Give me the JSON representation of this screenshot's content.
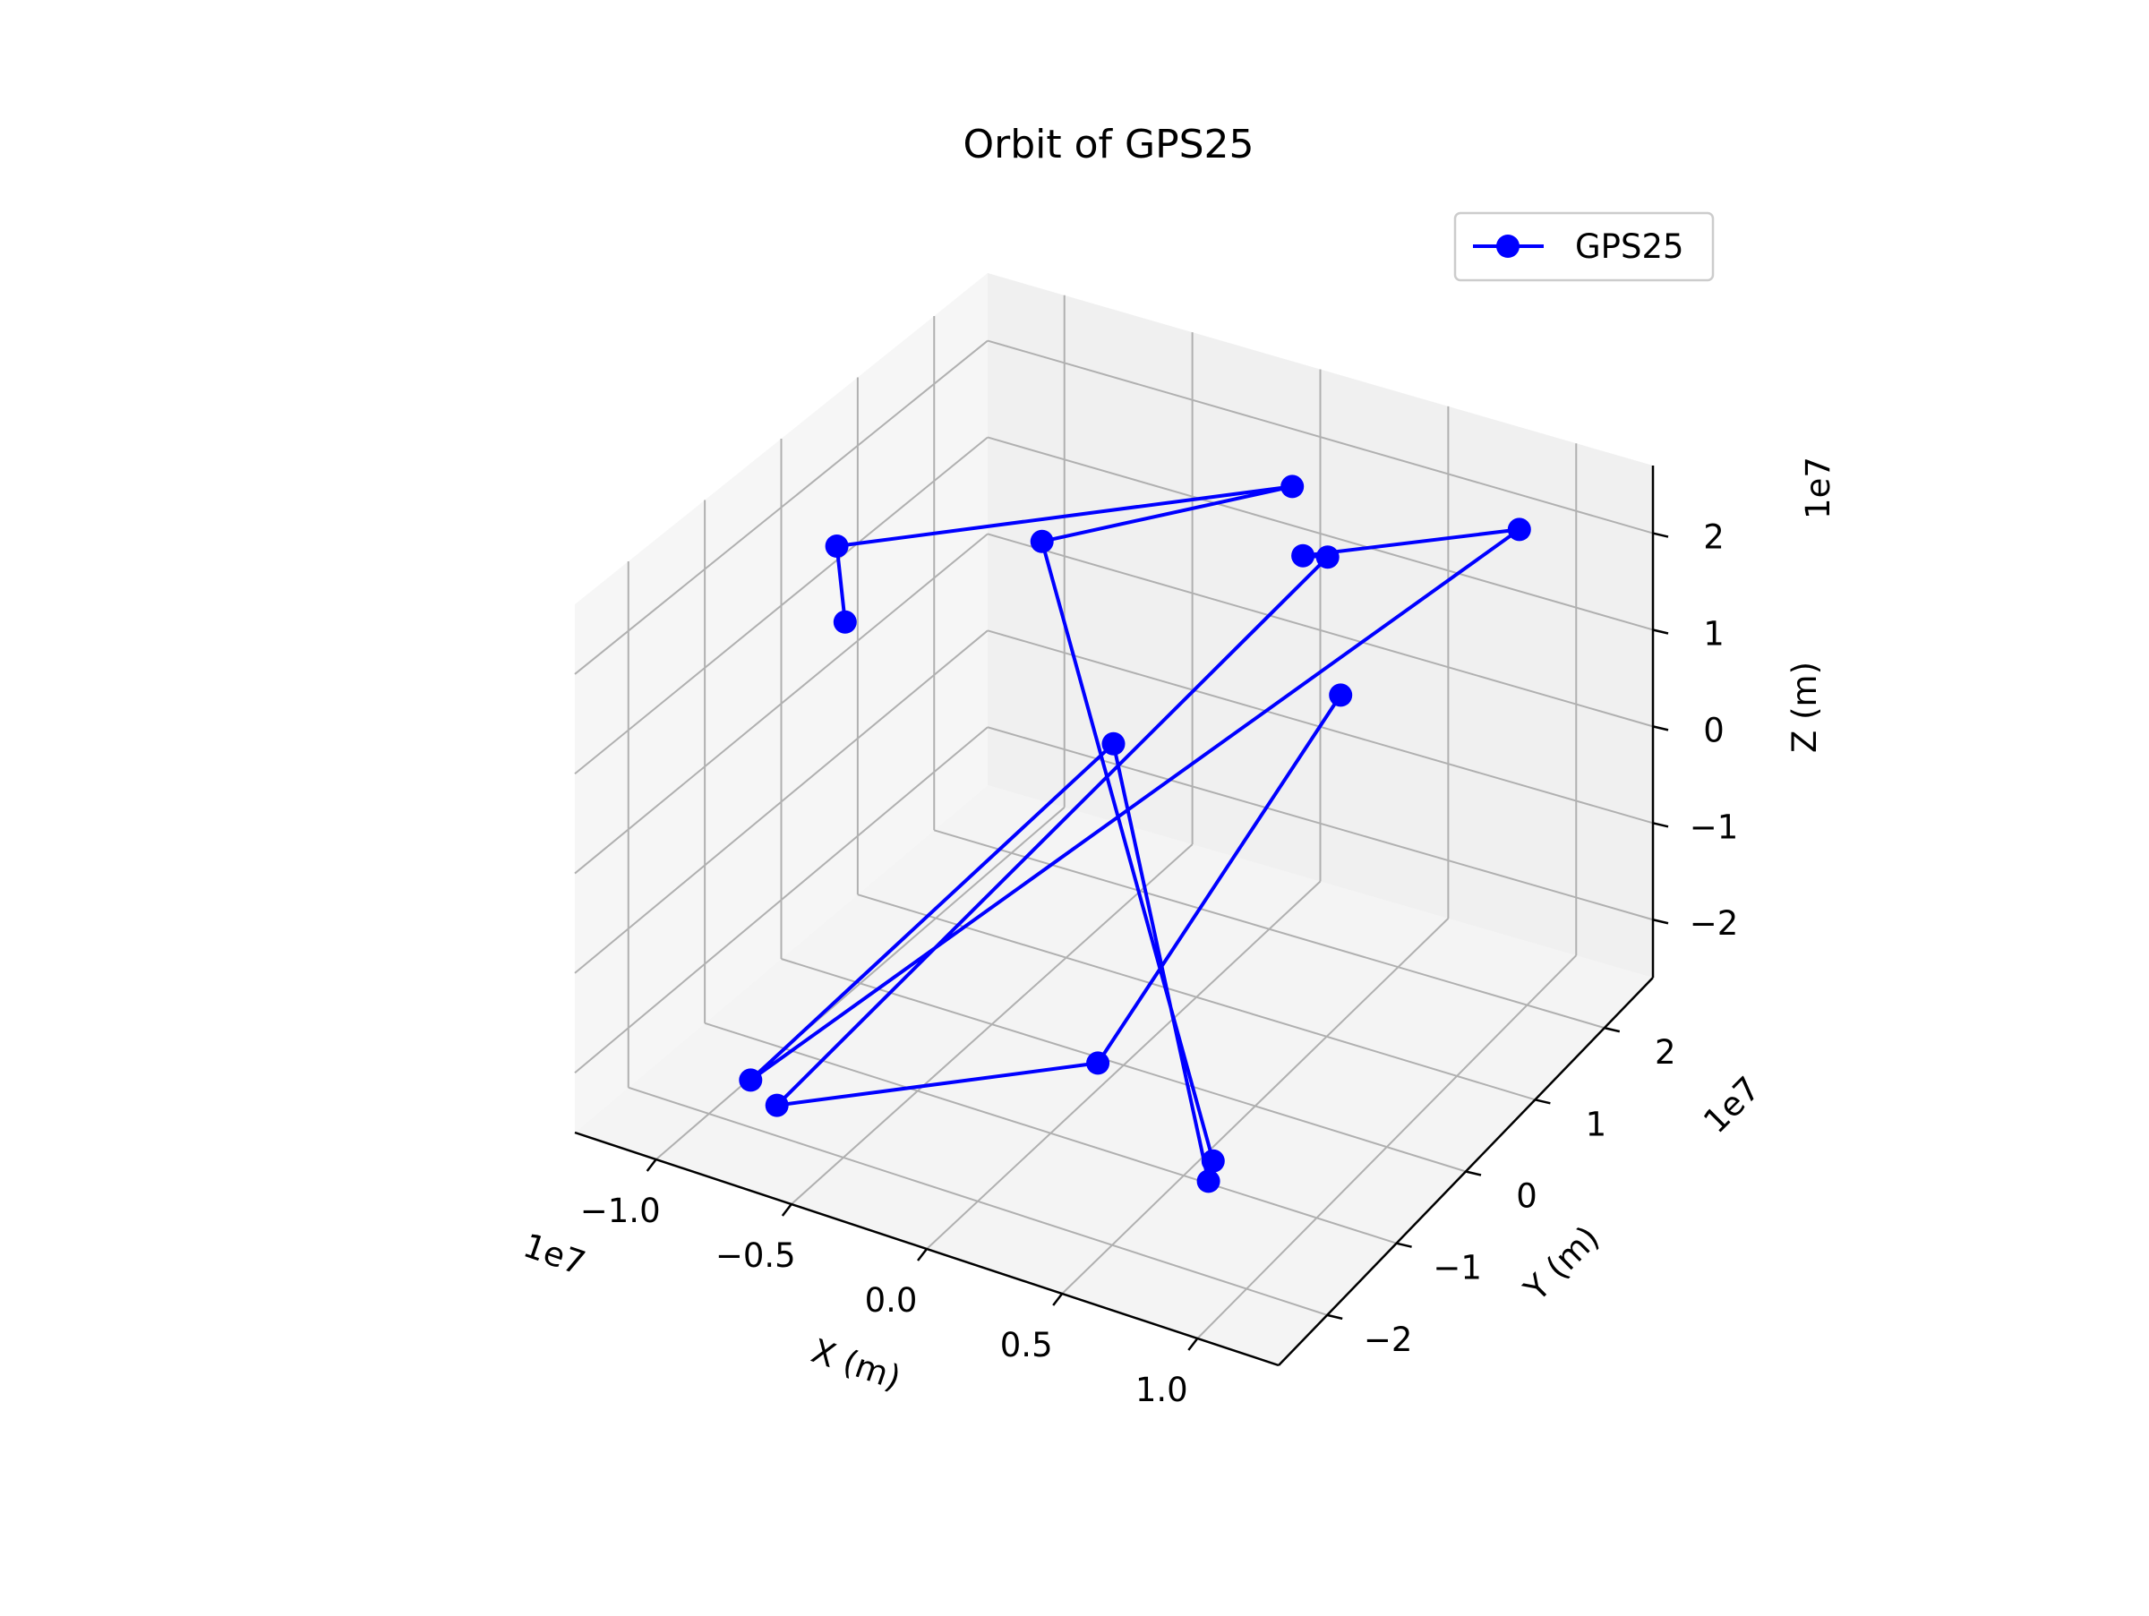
{
  "chart_data": {
    "type": "line3d",
    "title": "Orbit of GPS25",
    "xlabel": "X (m)",
    "ylabel": "Y (m)",
    "zlabel": "Z (m)",
    "x_multiplier": "1e7",
    "y_multiplier": "1e7",
    "z_multiplier": "1e7",
    "xlim": [
      -1.3,
      1.3
    ],
    "ylim": [
      -2.7,
      2.7
    ],
    "zlim": [
      -2.6,
      2.7
    ],
    "x_ticks": [
      -1.0,
      -0.5,
      0.0,
      0.5,
      1.0
    ],
    "x_tick_labels": [
      "−1.0",
      "−0.5",
      "0.0",
      "0.5",
      "1.0"
    ],
    "y_ticks": [
      -2,
      -1,
      0,
      1,
      2
    ],
    "y_tick_labels": [
      "−2",
      "−1",
      "0",
      "1",
      "2"
    ],
    "z_ticks": [
      -2,
      -1,
      0,
      1,
      2
    ],
    "z_tick_labels": [
      "−2",
      "−1",
      "0",
      "1",
      "2"
    ],
    "grid": true,
    "legend_position": "upper right",
    "series": [
      {
        "name": "GPS25",
        "color": "#0000ff",
        "marker": "circle",
        "points": [
          {
            "x": -0.68,
            "y": -1.33,
            "z": 2.23
          },
          {
            "x": -0.92,
            "y": -0.59,
            "z": 2.31
          },
          {
            "x": 0.12,
            "y": 1.89,
            "z": 2.14
          },
          {
            "x": -0.36,
            "y": 0.18,
            "z": 2.34
          },
          {
            "x": 0.64,
            "y": -1.11,
            "z": -2.25
          },
          {
            "x": 0.66,
            "y": -1.25,
            "z": -2.34
          },
          {
            "x": -0.2,
            "y": 0.58,
            "z": 0.13
          },
          {
            "x": -0.82,
            "y": -2.09,
            "z": -2.04
          },
          {
            "x": 0.94,
            "y": 2.11,
            "z": 2.19
          },
          {
            "x": 0.45,
            "y": 0.85,
            "z": 2.42
          },
          {
            "x": 0.52,
            "y": 0.94,
            "z": 2.4
          },
          {
            "x": -0.75,
            "y": -1.99,
            "z": -2.3
          },
          {
            "x": 0.06,
            "y": -0.57,
            "z": -2.13
          },
          {
            "x": 0.57,
            "y": 0.94,
            "z": 1.02
          }
        ]
      }
    ]
  }
}
